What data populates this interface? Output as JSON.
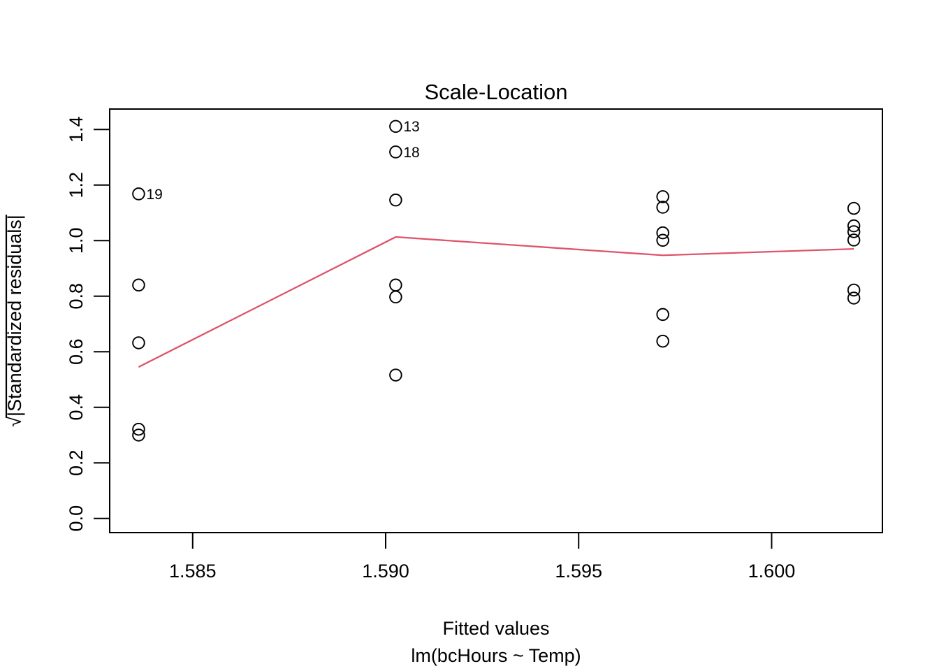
{
  "figure": {
    "background_color": "#ffffff",
    "foreground_color": "#000000"
  },
  "chart_data": {
    "type": "scatter",
    "title": "Scale-Location",
    "xlabel": "Fitted values",
    "xsublabel": "lm(bcHours ~ Temp)",
    "ylabel_radical": "√",
    "ylabel_overlined": "|Standardized residuals|",
    "x_tick_labels": [
      "1.585",
      "1.590",
      "1.595",
      "1.600"
    ],
    "x_tick_values": [
      1.585,
      1.59,
      1.595,
      1.6
    ],
    "y_tick_labels": [
      "0.0",
      "0.2",
      "0.4",
      "0.6",
      "0.8",
      "1.0",
      "1.2",
      "1.4"
    ],
    "y_tick_values": [
      0.0,
      0.2,
      0.4,
      0.6,
      0.8,
      1.0,
      1.2,
      1.4
    ],
    "xlim": [
      1.58285,
      1.60287
    ],
    "ylim": [
      -0.0511,
      1.4735
    ],
    "grid": false,
    "legend": null,
    "point_color": "#000000",
    "smooth_color": "#DF536B",
    "points": [
      {
        "x": 1.5836,
        "y": 1.168,
        "label": "19"
      },
      {
        "x": 1.5836,
        "y": 0.84
      },
      {
        "x": 1.5836,
        "y": 0.632
      },
      {
        "x": 1.5836,
        "y": 0.321
      },
      {
        "x": 1.5836,
        "y": 0.3
      },
      {
        "x": 1.59026,
        "y": 1.411,
        "label": "13"
      },
      {
        "x": 1.59026,
        "y": 1.319,
        "label": "18"
      },
      {
        "x": 1.59026,
        "y": 1.146
      },
      {
        "x": 1.59026,
        "y": 0.84
      },
      {
        "x": 1.59026,
        "y": 0.797
      },
      {
        "x": 1.59026,
        "y": 0.516
      },
      {
        "x": 1.59718,
        "y": 1.158
      },
      {
        "x": 1.59718,
        "y": 1.12
      },
      {
        "x": 1.59718,
        "y": 1.028
      },
      {
        "x": 1.59718,
        "y": 1.001
      },
      {
        "x": 1.59718,
        "y": 0.734
      },
      {
        "x": 1.59718,
        "y": 0.638
      },
      {
        "x": 1.60213,
        "y": 1.116
      },
      {
        "x": 1.60213,
        "y": 1.053
      },
      {
        "x": 1.60213,
        "y": 1.032
      },
      {
        "x": 1.60213,
        "y": 1.002
      },
      {
        "x": 1.60213,
        "y": 0.822
      },
      {
        "x": 1.60213,
        "y": 0.793
      }
    ],
    "smooth_line": [
      [
        1.5836,
        0.545
      ],
      [
        1.59026,
        1.013
      ],
      [
        1.59718,
        0.947
      ],
      [
        1.60213,
        0.97
      ]
    ]
  }
}
